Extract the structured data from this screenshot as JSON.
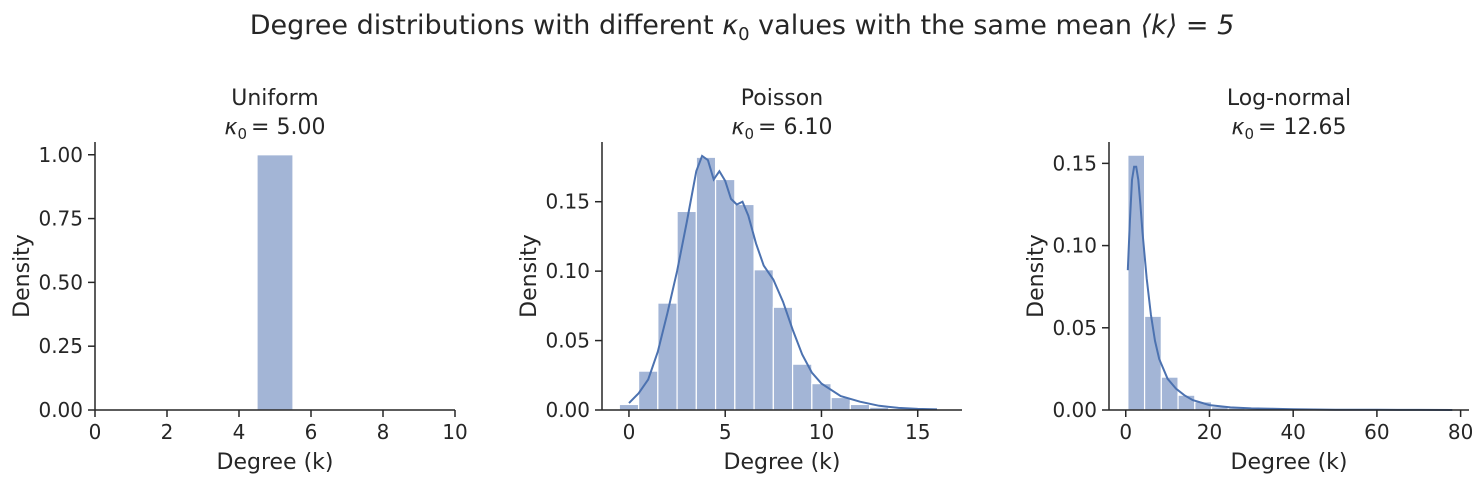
{
  "figure": {
    "title_prefix": "Degree distributions with different ",
    "title_kappa": "κ",
    "title_kappa_sub": "0",
    "title_middle": " values with the same mean ",
    "title_mean": "⟨k⟩ = 5"
  },
  "colors": {
    "bar": "#a3b5d6",
    "kde": "#4c72b0",
    "axis": "#262626"
  },
  "chart_data": [
    {
      "type": "bar",
      "title": "Uniform",
      "kappa_label": "κ",
      "kappa_sub": "0",
      "kappa_value": "= 5.00",
      "xlabel": "Degree (k)",
      "ylabel": "Density",
      "xlim": [
        0,
        10
      ],
      "ylim": [
        0,
        1.05
      ],
      "xticks": [
        0,
        2,
        4,
        6,
        8,
        10
      ],
      "xtick_labels": [
        "0",
        "2",
        "4",
        "6",
        "8",
        "10"
      ],
      "yticks": [
        0,
        0.25,
        0.5,
        0.75,
        1.0
      ],
      "ytick_labels": [
        "0.00",
        "0.25",
        "0.50",
        "0.75",
        "1.00"
      ],
      "bins": [
        {
          "x0": 4.5,
          "x1": 5.5,
          "value": 1.0
        }
      ],
      "kde": []
    },
    {
      "type": "bar",
      "title": "Poisson",
      "kappa_label": "κ",
      "kappa_sub": "0",
      "kappa_value": "= 6.10",
      "xlabel": "Degree (k)",
      "ylabel": "Density",
      "xlim": [
        -1.4,
        17.3
      ],
      "ylim": [
        0,
        0.193
      ],
      "xticks": [
        0,
        5,
        10,
        15
      ],
      "xtick_labels": [
        "0",
        "5",
        "10",
        "15"
      ],
      "yticks": [
        0,
        0.05,
        0.1,
        0.15
      ],
      "ytick_labels": [
        "0.00",
        "0.05",
        "0.10",
        "0.15"
      ],
      "bins": [
        {
          "x0": -0.5,
          "x1": 0.5,
          "value": 0.004
        },
        {
          "x0": 0.5,
          "x1": 1.5,
          "value": 0.028
        },
        {
          "x0": 1.5,
          "x1": 2.5,
          "value": 0.077
        },
        {
          "x0": 2.5,
          "x1": 3.5,
          "value": 0.143
        },
        {
          "x0": 3.5,
          "x1": 4.5,
          "value": 0.182
        },
        {
          "x0": 4.5,
          "x1": 5.5,
          "value": 0.166
        },
        {
          "x0": 5.5,
          "x1": 6.5,
          "value": 0.148
        },
        {
          "x0": 6.5,
          "x1": 7.5,
          "value": 0.101
        },
        {
          "x0": 7.5,
          "x1": 8.5,
          "value": 0.074
        },
        {
          "x0": 8.5,
          "x1": 9.5,
          "value": 0.033
        },
        {
          "x0": 9.5,
          "x1": 10.5,
          "value": 0.019
        },
        {
          "x0": 10.5,
          "x1": 11.5,
          "value": 0.009
        },
        {
          "x0": 11.5,
          "x1": 12.5,
          "value": 0.004
        },
        {
          "x0": 12.5,
          "x1": 13.5,
          "value": 0.002
        },
        {
          "x0": 13.5,
          "x1": 14.5,
          "value": 0.001
        },
        {
          "x0": 14.5,
          "x1": 15.5,
          "value": 0.0005
        }
      ],
      "kde": [
        [
          0,
          0.005
        ],
        [
          0.5,
          0.012
        ],
        [
          1,
          0.022
        ],
        [
          1.5,
          0.042
        ],
        [
          2,
          0.07
        ],
        [
          2.5,
          0.1
        ],
        [
          3,
          0.135
        ],
        [
          3.5,
          0.172
        ],
        [
          3.8,
          0.183
        ],
        [
          4.1,
          0.18
        ],
        [
          4.4,
          0.166
        ],
        [
          4.7,
          0.172
        ],
        [
          5,
          0.165
        ],
        [
          5.3,
          0.152
        ],
        [
          5.6,
          0.148
        ],
        [
          5.9,
          0.15
        ],
        [
          6.2,
          0.14
        ],
        [
          6.6,
          0.12
        ],
        [
          7,
          0.104
        ],
        [
          7.5,
          0.094
        ],
        [
          8,
          0.078
        ],
        [
          8.5,
          0.058
        ],
        [
          9,
          0.04
        ],
        [
          9.5,
          0.027
        ],
        [
          10,
          0.019
        ],
        [
          11,
          0.01
        ],
        [
          12,
          0.006
        ],
        [
          13,
          0.003
        ],
        [
          14,
          0.0015
        ],
        [
          15,
          0.0008
        ],
        [
          16,
          0.0004
        ]
      ]
    },
    {
      "type": "bar",
      "title": "Log-normal",
      "kappa_label": "κ",
      "kappa_sub": "0",
      "kappa_value": "= 12.65",
      "xlabel": "Degree (k)",
      "ylabel": "Density",
      "xlim": [
        -4,
        82
      ],
      "ylim": [
        0,
        0.163
      ],
      "xticks": [
        0,
        20,
        40,
        60,
        80
      ],
      "xtick_labels": [
        "0",
        "20",
        "40",
        "60",
        "80"
      ],
      "yticks": [
        0,
        0.05,
        0.1,
        0.15
      ],
      "ytick_labels": [
        "0.00",
        "0.05",
        "0.10",
        "0.15"
      ],
      "bins": [
        {
          "x0": 0.5,
          "x1": 4.5,
          "value": 0.155
        },
        {
          "x0": 4.5,
          "x1": 8.5,
          "value": 0.057
        },
        {
          "x0": 8.5,
          "x1": 12.5,
          "value": 0.02
        },
        {
          "x0": 12.5,
          "x1": 16.5,
          "value": 0.009
        },
        {
          "x0": 16.5,
          "x1": 20.5,
          "value": 0.005
        },
        {
          "x0": 20.5,
          "x1": 24.5,
          "value": 0.002
        },
        {
          "x0": 24.5,
          "x1": 28.5,
          "value": 0.0012
        },
        {
          "x0": 28.5,
          "x1": 32.5,
          "value": 0.0007
        },
        {
          "x0": 32.5,
          "x1": 36.5,
          "value": 0.0004
        },
        {
          "x0": 36.5,
          "x1": 40.5,
          "value": 0.0003
        },
        {
          "x0": 40.5,
          "x1": 44.5,
          "value": 0.0002
        }
      ],
      "kde": [
        [
          0.5,
          0.085
        ],
        [
          1,
          0.115
        ],
        [
          1.5,
          0.14
        ],
        [
          2,
          0.148
        ],
        [
          2.5,
          0.148
        ],
        [
          3,
          0.14
        ],
        [
          3.5,
          0.125
        ],
        [
          4,
          0.108
        ],
        [
          5,
          0.08
        ],
        [
          6,
          0.058
        ],
        [
          7,
          0.042
        ],
        [
          8,
          0.031
        ],
        [
          10,
          0.019
        ],
        [
          12,
          0.013
        ],
        [
          14,
          0.009
        ],
        [
          16,
          0.006
        ],
        [
          20,
          0.003
        ],
        [
          25,
          0.0016
        ],
        [
          30,
          0.001
        ],
        [
          35,
          0.0007
        ],
        [
          40,
          0.0005
        ],
        [
          45,
          0.0003
        ],
        [
          50,
          0.0002
        ],
        [
          60,
          0.0001
        ],
        [
          70,
          5e-05
        ],
        [
          78,
          3e-05
        ]
      ]
    }
  ]
}
